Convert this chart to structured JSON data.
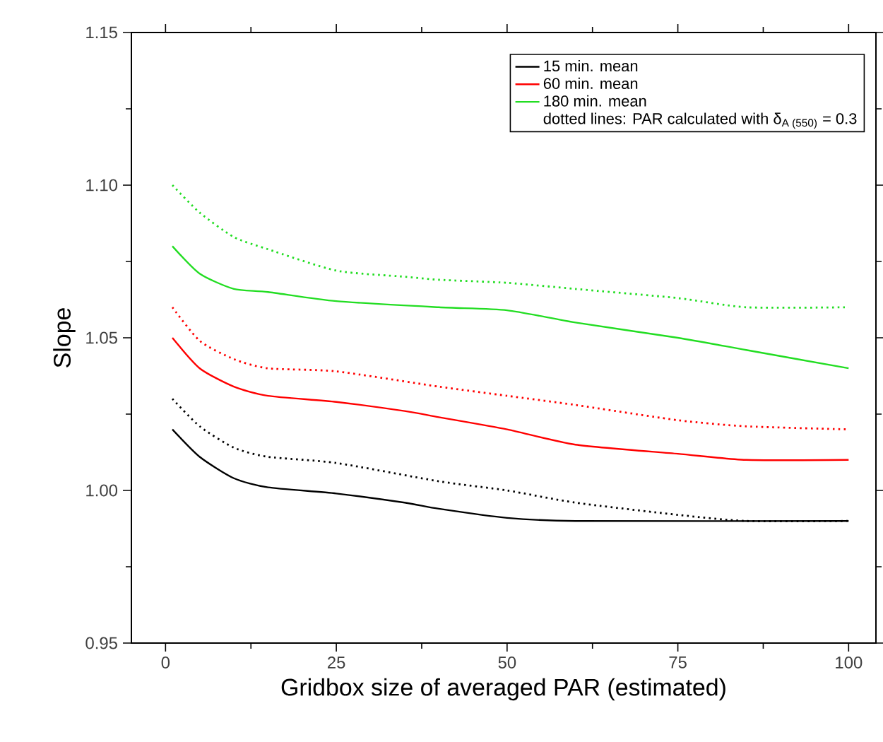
{
  "chart_data": {
    "type": "line",
    "xlabel": "Gridbox size of averaged PAR (estimated)",
    "ylabel": "Slope",
    "xlim": [
      -5,
      104
    ],
    "ylim": [
      0.95,
      1.15
    ],
    "xticks": [
      0,
      {
        "value": 12.5,
        "label": null
      },
      25,
      {
        "value": 37.5,
        "label": null
      },
      50,
      {
        "value": 62.5,
        "label": null
      },
      75,
      {
        "value": 87.5,
        "label": null
      },
      100
    ],
    "yticks": [
      {
        "value": 0.95,
        "label": "0.95"
      },
      {
        "value": 0.975,
        "label": null
      },
      {
        "value": 1.0,
        "label": "1.00"
      },
      {
        "value": 1.025,
        "label": null
      },
      {
        "value": 1.05,
        "label": "1.05"
      },
      {
        "value": 1.075,
        "label": null
      },
      {
        "value": 1.1,
        "label": "1.10"
      },
      {
        "value": 1.125,
        "label": null
      },
      {
        "value": 1.15,
        "label": "1.15"
      }
    ],
    "legend": "top right",
    "grid": false,
    "marker": "none",
    "annotations": [
      "dotted lines: PAR calculated with δ$_{A (550)}$ = 0.3"
    ],
    "series": [
      {
        "name": "15 min. mean",
        "color": "#000000",
        "line_style": "solid",
        "x": [
          1,
          5,
          10,
          15,
          25,
          35,
          40,
          50,
          60,
          100
        ],
        "values": [
          1.02,
          1.011,
          1.004,
          1.001,
          0.999,
          0.996,
          0.994,
          0.991,
          0.99,
          0.99
        ]
      },
      {
        "name": "60 min. mean",
        "color": "#ff0000",
        "line_style": "solid",
        "x": [
          1,
          5,
          10,
          15,
          25,
          35,
          40,
          50,
          60,
          75,
          85,
          100
        ],
        "values": [
          1.05,
          1.04,
          1.034,
          1.031,
          1.029,
          1.026,
          1.024,
          1.02,
          1.015,
          1.012,
          1.01,
          1.01
        ]
      },
      {
        "name": "180 min. mean",
        "color": "#22dd22",
        "line_style": "solid",
        "x": [
          1,
          5,
          10,
          15,
          25,
          40,
          50,
          60,
          75,
          85,
          100
        ],
        "values": [
          1.08,
          1.071,
          1.066,
          1.065,
          1.062,
          1.06,
          1.059,
          1.055,
          1.05,
          1.046,
          1.04
        ]
      },
      {
        "color": "#000000",
        "line_style": "dotted",
        "x": [
          1,
          5,
          10,
          15,
          25,
          40,
          50,
          60,
          75,
          85,
          100
        ],
        "values": [
          1.03,
          1.021,
          1.014,
          1.011,
          1.009,
          1.003,
          1.0,
          0.996,
          0.992,
          0.99,
          0.99
        ]
      },
      {
        "color": "#ff0000",
        "line_style": "dotted",
        "x": [
          1,
          5,
          10,
          15,
          25,
          40,
          50,
          60,
          75,
          85,
          100
        ],
        "values": [
          1.06,
          1.049,
          1.043,
          1.04,
          1.039,
          1.034,
          1.031,
          1.028,
          1.023,
          1.021,
          1.02
        ]
      },
      {
        "color": "#22dd22",
        "line_style": "dotted",
        "x": [
          1,
          5,
          10,
          15,
          25,
          35,
          40,
          50,
          60,
          75,
          85,
          100
        ],
        "values": [
          1.1,
          1.091,
          1.083,
          1.079,
          1.072,
          1.07,
          1.069,
          1.068,
          1.066,
          1.063,
          1.06,
          1.06
        ]
      }
    ]
  }
}
